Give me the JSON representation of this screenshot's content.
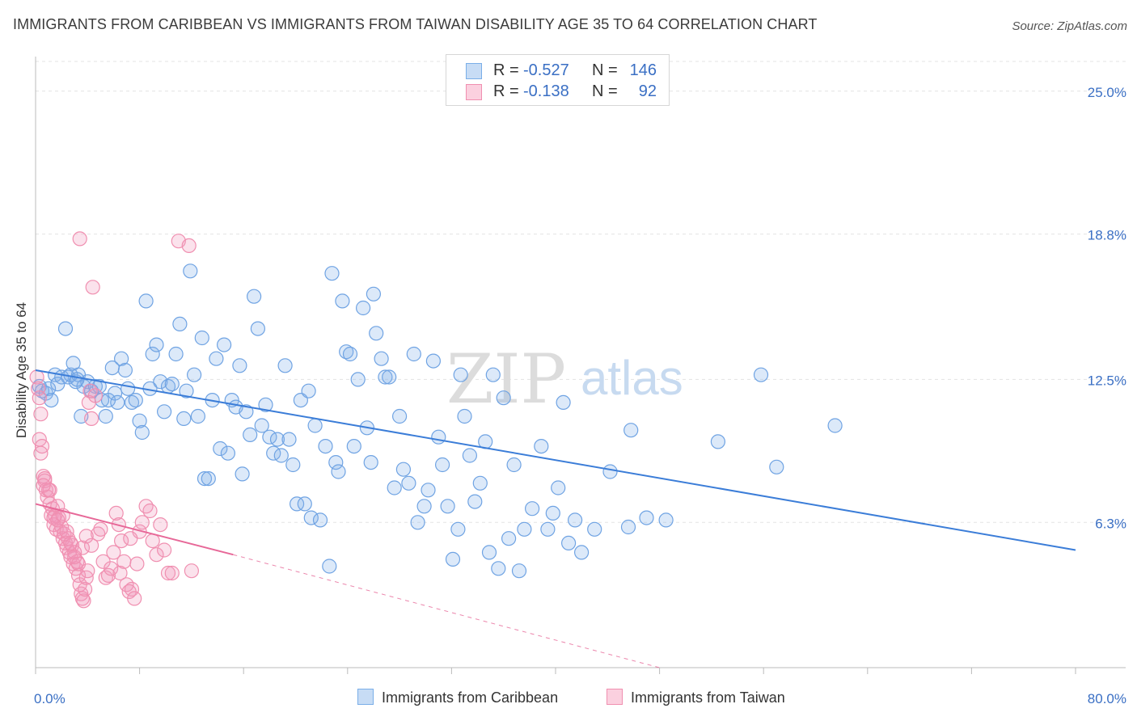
{
  "title": "IMMIGRANTS FROM CARIBBEAN VS IMMIGRANTS FROM TAIWAN DISABILITY AGE 35 TO 64 CORRELATION CHART",
  "source": "Source: ZipAtlas.com",
  "watermark": {
    "zip": "ZIP",
    "atlas": "atlas"
  },
  "legend": {
    "rows": [
      {
        "r_label": "R =",
        "r_value": "-0.527",
        "n_label": "N =",
        "n_value": "146",
        "color": "#7aaee8",
        "fill": "#c7dcf5"
      },
      {
        "r_label": "R =",
        "r_value": "-0.138",
        "n_label": "N =",
        "n_value": "92",
        "color": "#f08fb0",
        "fill": "#fbd0df"
      }
    ]
  },
  "chart_data": {
    "type": "scatter",
    "title": "IMMIGRANTS FROM CARIBBEAN VS IMMIGRANTS FROM TAIWAN DISABILITY AGE 35 TO 64 CORRELATION CHART",
    "xlabel": "",
    "ylabel": "Disability Age 35 to 64",
    "xlim": [
      0,
      80
    ],
    "ylim": [
      0,
      26.5
    ],
    "x_tick_labels": [
      "0.0%",
      "80.0%"
    ],
    "y_ticks": [
      6.3,
      12.5,
      18.8,
      25.0
    ],
    "y_tick_labels": [
      "6.3%",
      "12.5%",
      "18.8%",
      "25.0%"
    ],
    "grid": true,
    "legend_position": "bottom",
    "series": [
      {
        "name": "Immigrants from Caribbean",
        "color": "#6fa3e3",
        "trend": {
          "x": [
            0,
            80
          ],
          "y": [
            12.9,
            5.1
          ],
          "color": "#3b7dd8"
        },
        "points": [
          [
            0.3,
            12.2
          ],
          [
            0.5,
            12.0
          ],
          [
            0.8,
            11.9
          ],
          [
            1.0,
            12.1
          ],
          [
            1.2,
            11.6
          ],
          [
            1.5,
            12.7
          ],
          [
            1.7,
            12.3
          ],
          [
            2.0,
            12.6
          ],
          [
            2.3,
            14.7
          ],
          [
            2.5,
            12.6
          ],
          [
            2.7,
            12.7
          ],
          [
            2.9,
            13.2
          ],
          [
            3.1,
            12.4
          ],
          [
            3.3,
            12.7
          ],
          [
            3.5,
            10.9
          ],
          [
            3.7,
            12.2
          ],
          [
            4.0,
            12.4
          ],
          [
            4.3,
            12.0
          ],
          [
            4.6,
            12.2
          ],
          [
            4.9,
            12.2
          ],
          [
            5.1,
            11.6
          ],
          [
            5.4,
            10.9
          ],
          [
            5.6,
            11.6
          ],
          [
            5.9,
            13.0
          ],
          [
            6.1,
            11.9
          ],
          [
            6.3,
            11.5
          ],
          [
            6.6,
            13.4
          ],
          [
            6.9,
            12.9
          ],
          [
            7.1,
            12.1
          ],
          [
            7.4,
            11.5
          ],
          [
            7.7,
            11.6
          ],
          [
            8.0,
            10.7
          ],
          [
            8.2,
            10.2
          ],
          [
            8.5,
            15.9
          ],
          [
            8.8,
            12.1
          ],
          [
            9.0,
            13.6
          ],
          [
            9.3,
            14.0
          ],
          [
            9.6,
            12.4
          ],
          [
            9.9,
            11.1
          ],
          [
            10.2,
            12.2
          ],
          [
            10.5,
            12.3
          ],
          [
            10.8,
            13.6
          ],
          [
            11.1,
            14.9
          ],
          [
            11.4,
            10.8
          ],
          [
            11.6,
            12.0
          ],
          [
            11.9,
            17.2
          ],
          [
            12.2,
            12.7
          ],
          [
            12.5,
            10.9
          ],
          [
            12.8,
            14.3
          ],
          [
            13.0,
            8.2
          ],
          [
            13.3,
            8.2
          ],
          [
            13.6,
            11.6
          ],
          [
            13.9,
            13.4
          ],
          [
            14.2,
            9.5
          ],
          [
            14.5,
            14.0
          ],
          [
            14.8,
            9.3
          ],
          [
            15.1,
            11.6
          ],
          [
            15.4,
            11.3
          ],
          [
            15.7,
            13.1
          ],
          [
            15.9,
            8.4
          ],
          [
            16.2,
            11.1
          ],
          [
            16.5,
            10.1
          ],
          [
            16.8,
            16.1
          ],
          [
            17.1,
            14.7
          ],
          [
            17.4,
            10.5
          ],
          [
            17.7,
            11.4
          ],
          [
            18.0,
            10.0
          ],
          [
            18.3,
            9.3
          ],
          [
            18.6,
            9.9
          ],
          [
            18.9,
            9.2
          ],
          [
            19.2,
            13.1
          ],
          [
            19.5,
            9.9
          ],
          [
            19.8,
            8.8
          ],
          [
            20.1,
            7.1
          ],
          [
            20.4,
            11.6
          ],
          [
            20.7,
            7.1
          ],
          [
            21.0,
            12.0
          ],
          [
            21.2,
            6.5
          ],
          [
            21.5,
            10.5
          ],
          [
            21.9,
            6.4
          ],
          [
            22.3,
            9.6
          ],
          [
            22.6,
            4.4
          ],
          [
            22.8,
            17.1
          ],
          [
            23.1,
            8.9
          ],
          [
            23.3,
            8.5
          ],
          [
            23.6,
            15.9
          ],
          [
            23.9,
            13.7
          ],
          [
            24.2,
            13.6
          ],
          [
            24.5,
            9.6
          ],
          [
            24.8,
            12.5
          ],
          [
            25.2,
            15.6
          ],
          [
            25.5,
            10.4
          ],
          [
            25.8,
            8.9
          ],
          [
            26.2,
            14.5
          ],
          [
            26.6,
            13.4
          ],
          [
            26.9,
            12.6
          ],
          [
            27.2,
            12.6
          ],
          [
            27.6,
            7.8
          ],
          [
            28.0,
            10.9
          ],
          [
            28.3,
            8.6
          ],
          [
            28.7,
            8.0
          ],
          [
            29.1,
            13.6
          ],
          [
            29.4,
            6.3
          ],
          [
            29.9,
            7.0
          ],
          [
            30.2,
            7.7
          ],
          [
            30.6,
            13.3
          ],
          [
            31.0,
            10.0
          ],
          [
            31.3,
            8.8
          ],
          [
            31.7,
            7.0
          ],
          [
            32.1,
            4.7
          ],
          [
            32.5,
            6.0
          ],
          [
            32.7,
            12.7
          ],
          [
            33.0,
            10.9
          ],
          [
            33.4,
            9.2
          ],
          [
            33.8,
            7.2
          ],
          [
            34.2,
            8.0
          ],
          [
            34.6,
            9.8
          ],
          [
            34.9,
            5.0
          ],
          [
            35.2,
            12.7
          ],
          [
            35.6,
            4.3
          ],
          [
            36.0,
            11.7
          ],
          [
            36.4,
            5.6
          ],
          [
            36.8,
            8.8
          ],
          [
            37.2,
            4.2
          ],
          [
            37.6,
            6.0
          ],
          [
            38.2,
            6.9
          ],
          [
            38.9,
            9.6
          ],
          [
            39.4,
            6.0
          ],
          [
            39.8,
            6.7
          ],
          [
            40.2,
            7.8
          ],
          [
            40.6,
            11.5
          ],
          [
            41.0,
            5.4
          ],
          [
            41.5,
            6.4
          ],
          [
            42.0,
            5.0
          ],
          [
            43.0,
            6.0
          ],
          [
            44.2,
            8.5
          ],
          [
            45.8,
            10.3
          ],
          [
            45.6,
            6.1
          ],
          [
            47.0,
            6.5
          ],
          [
            48.5,
            6.4
          ],
          [
            52.5,
            9.8
          ],
          [
            55.8,
            12.7
          ],
          [
            57.0,
            8.7
          ],
          [
            61.5,
            10.5
          ],
          [
            3.2,
            12.5
          ],
          [
            26.0,
            16.2
          ]
        ]
      },
      {
        "name": "Immigrants from Taiwan",
        "color": "#f29bbb",
        "trend": {
          "x": [
            0,
            15.2
          ],
          "y": [
            7.1,
            4.9
          ],
          "dash_to": {
            "x": 48,
            "y": 0
          },
          "color": "#e76898"
        },
        "points": [
          [
            0.1,
            12.6
          ],
          [
            0.2,
            12.1
          ],
          [
            0.3,
            11.7
          ],
          [
            0.4,
            11.0
          ],
          [
            0.3,
            9.9
          ],
          [
            0.5,
            9.6
          ],
          [
            0.4,
            9.3
          ],
          [
            0.6,
            8.3
          ],
          [
            0.7,
            8.1
          ],
          [
            0.8,
            7.7
          ],
          [
            0.9,
            7.4
          ],
          [
            1.0,
            7.7
          ],
          [
            1.1,
            7.1
          ],
          [
            1.2,
            6.6
          ],
          [
            1.3,
            6.9
          ],
          [
            1.4,
            6.2
          ],
          [
            1.5,
            6.6
          ],
          [
            1.6,
            6.0
          ],
          [
            1.7,
            7.0
          ],
          [
            1.8,
            6.5
          ],
          [
            1.9,
            5.9
          ],
          [
            2.0,
            6.1
          ],
          [
            2.1,
            5.6
          ],
          [
            2.2,
            5.8
          ],
          [
            2.3,
            5.4
          ],
          [
            2.4,
            5.2
          ],
          [
            2.5,
            5.6
          ],
          [
            2.6,
            5.0
          ],
          [
            2.7,
            4.8
          ],
          [
            2.8,
            5.3
          ],
          [
            2.9,
            4.5
          ],
          [
            3.0,
            5.0
          ],
          [
            3.1,
            4.3
          ],
          [
            3.2,
            4.6
          ],
          [
            3.3,
            4.0
          ],
          [
            3.4,
            3.6
          ],
          [
            3.5,
            3.2
          ],
          [
            3.6,
            3.0
          ],
          [
            3.7,
            2.9
          ],
          [
            3.8,
            3.4
          ],
          [
            3.9,
            3.9
          ],
          [
            4.0,
            4.2
          ],
          [
            4.1,
            11.5
          ],
          [
            4.2,
            12.0
          ],
          [
            4.3,
            10.8
          ],
          [
            4.4,
            16.5
          ],
          [
            4.6,
            11.8
          ],
          [
            4.8,
            5.8
          ],
          [
            5.0,
            6.0
          ],
          [
            5.2,
            4.6
          ],
          [
            5.4,
            3.9
          ],
          [
            5.6,
            4.0
          ],
          [
            5.8,
            4.3
          ],
          [
            6.0,
            5.0
          ],
          [
            6.2,
            6.7
          ],
          [
            6.4,
            6.2
          ],
          [
            6.6,
            5.5
          ],
          [
            6.8,
            4.6
          ],
          [
            7.0,
            3.6
          ],
          [
            7.2,
            3.3
          ],
          [
            7.4,
            3.4
          ],
          [
            7.6,
            3.0
          ],
          [
            7.8,
            4.5
          ],
          [
            8.0,
            5.9
          ],
          [
            8.2,
            6.3
          ],
          [
            8.5,
            7.0
          ],
          [
            8.8,
            6.8
          ],
          [
            9.0,
            5.5
          ],
          [
            9.3,
            4.9
          ],
          [
            9.6,
            6.2
          ],
          [
            9.9,
            5.1
          ],
          [
            10.2,
            4.1
          ],
          [
            10.5,
            4.1
          ],
          [
            11.0,
            18.5
          ],
          [
            11.8,
            18.3
          ],
          [
            3.4,
            18.6
          ],
          [
            0.7,
            8.2
          ],
          [
            1.1,
            7.7
          ],
          [
            1.4,
            6.5
          ],
          [
            1.7,
            6.4
          ],
          [
            2.1,
            6.6
          ],
          [
            2.4,
            5.9
          ],
          [
            2.7,
            5.4
          ],
          [
            3.0,
            4.8
          ],
          [
            3.3,
            4.5
          ],
          [
            3.6,
            5.2
          ],
          [
            3.9,
            5.7
          ],
          [
            4.3,
            5.3
          ],
          [
            6.5,
            4.1
          ],
          [
            7.3,
            5.6
          ],
          [
            12.0,
            4.2
          ],
          [
            0.6,
            7.9
          ]
        ]
      }
    ]
  }
}
